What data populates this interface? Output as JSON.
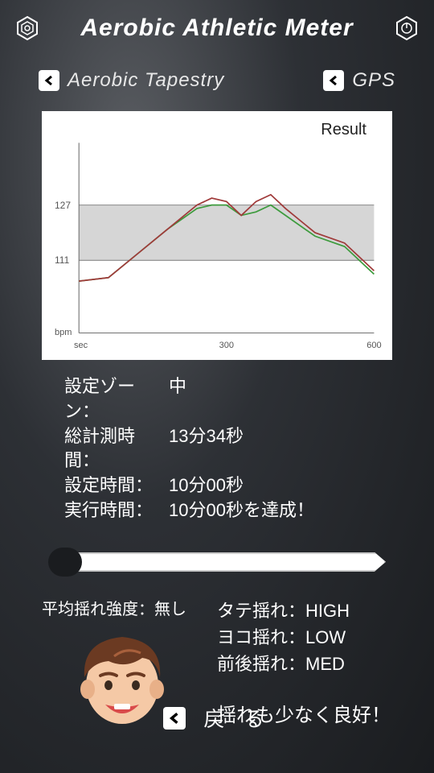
{
  "app_title": "Aerobic Athletic Meter",
  "nav": {
    "left": "Aerobic Tapestry",
    "right": "GPS"
  },
  "chart": {
    "type": "line",
    "title": "Result",
    "y_unit": "bpm",
    "x_unit": "sec",
    "x_min": 0,
    "x_max": 600,
    "y_min": 90,
    "y_max": 145,
    "x_ticks": [
      300,
      600
    ],
    "y_zone_low": 111,
    "y_zone_high": 127,
    "zone_fill": "#d6d6d6",
    "background": "#ffffff",
    "axis_color": "#707070",
    "series": [
      {
        "name": "green",
        "color": "#3d9b3d",
        "points": [
          [
            0,
            105
          ],
          [
            60,
            106
          ],
          [
            120,
            113
          ],
          [
            180,
            120
          ],
          [
            240,
            126
          ],
          [
            270,
            127
          ],
          [
            300,
            127
          ],
          [
            330,
            124
          ],
          [
            360,
            125
          ],
          [
            390,
            127
          ],
          [
            420,
            124
          ],
          [
            480,
            118
          ],
          [
            540,
            115
          ],
          [
            600,
            107
          ]
        ]
      },
      {
        "name": "red",
        "color": "#a03a3a",
        "points": [
          [
            0,
            105
          ],
          [
            60,
            106
          ],
          [
            120,
            113
          ],
          [
            180,
            120
          ],
          [
            240,
            127
          ],
          [
            270,
            129
          ],
          [
            300,
            128
          ],
          [
            330,
            124
          ],
          [
            360,
            128
          ],
          [
            390,
            130
          ],
          [
            420,
            126
          ],
          [
            480,
            119
          ],
          [
            540,
            116
          ],
          [
            600,
            108
          ]
        ]
      }
    ]
  },
  "stats": {
    "zone_label": "設定ゾーン：",
    "zone_value": "中",
    "total_label": "総計測時間：",
    "total_value": "13分34秒",
    "set_label": "設定時間：",
    "set_value": "10分00秒",
    "exec_label": "実行時間：",
    "exec_value": "10分00秒を達成！"
  },
  "progress": {
    "value": 0,
    "max": 100
  },
  "shake": {
    "avg_label": "平均揺れ強度：",
    "avg_value": "無し",
    "vert_label": "タテ揺れ：",
    "vert_value": "HIGH",
    "horiz_label": "ヨコ揺れ：",
    "horiz_value": "LOW",
    "fb_label": "前後揺れ：",
    "fb_value": "MED",
    "message": "揺れも少なく良好！"
  },
  "footer": {
    "back": "戻 る"
  },
  "avatar": {
    "hair": "#6b3a22",
    "skin": "#f5c9a6",
    "ear": "#e8b088",
    "mouth": "#d94a4a",
    "eye": "#3a2a1f"
  }
}
